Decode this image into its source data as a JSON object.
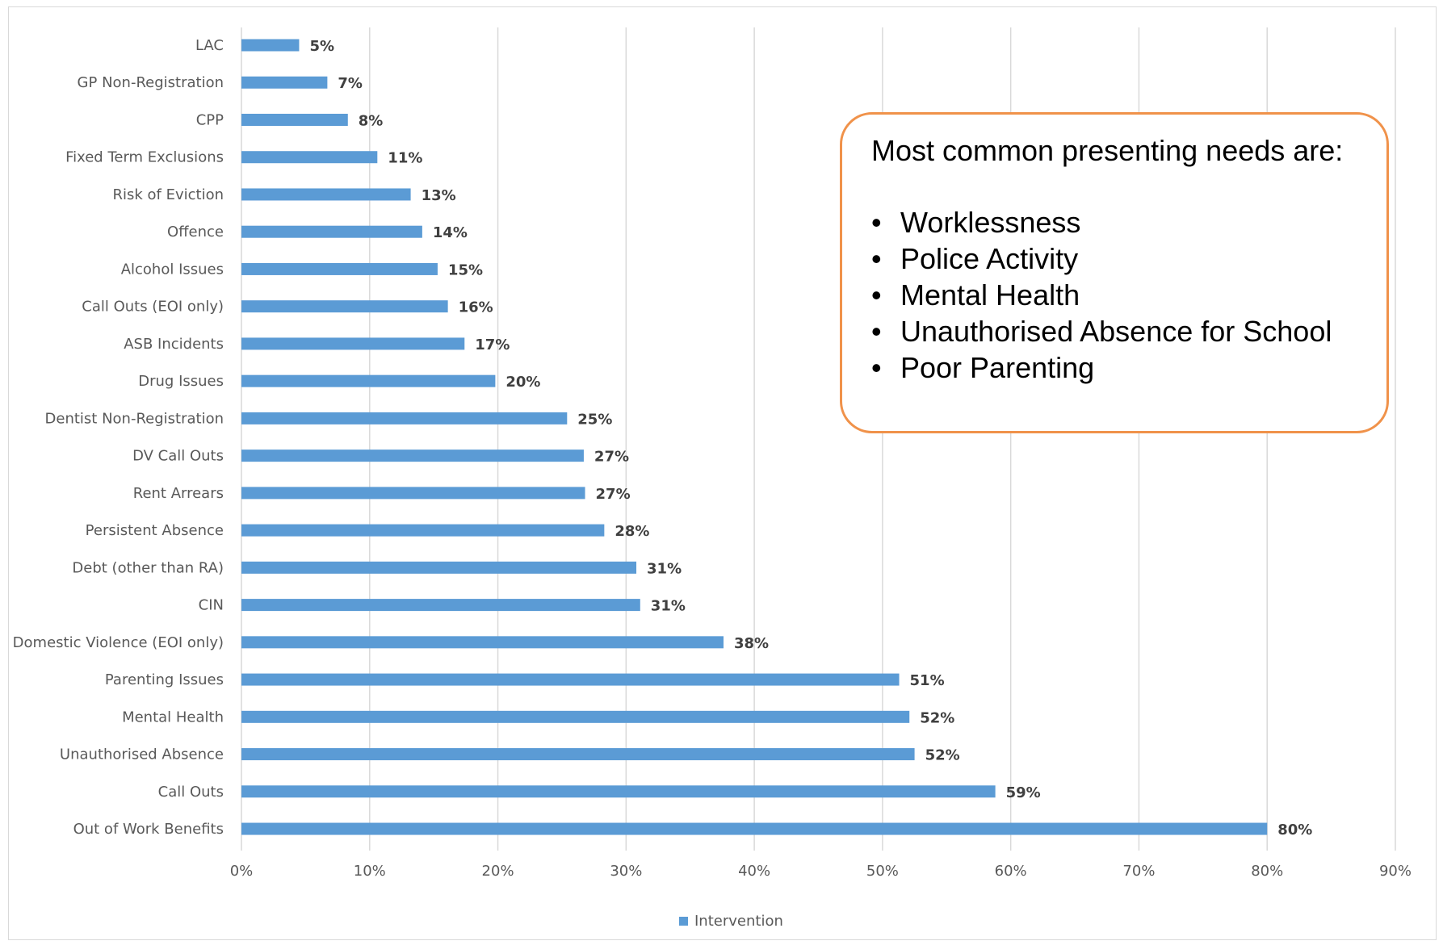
{
  "chart_data": {
    "type": "bar",
    "orientation": "horizontal",
    "categories": [
      "LAC",
      "GP Non-Registration",
      "CPP",
      "Fixed Term Exclusions",
      "Risk of Eviction",
      "Offence",
      "Alcohol Issues",
      "Call Outs (EOI only)",
      "ASB Incidents",
      "Drug Issues",
      "Dentist Non-Registration",
      "DV Call Outs",
      "Rent Arrears",
      "Persistent Absence",
      "Debt (other than RA)",
      "CIN",
      "Domestic Violence (EOI only)",
      "Parenting Issues",
      "Mental Health",
      "Unauthorised Absence",
      "Call Outs",
      "Out of Work Benefits"
    ],
    "series": [
      {
        "name": "Intervention",
        "color": "#5b9bd5",
        "values": [
          4.5,
          6.7,
          8.3,
          10.6,
          13.2,
          14.1,
          15.3,
          16.1,
          17.4,
          19.8,
          25.4,
          26.7,
          26.8,
          28.3,
          30.8,
          31.1,
          37.6,
          51.3,
          52.1,
          52.5,
          58.8,
          80.0
        ],
        "data_labels": [
          "5%",
          "7%",
          "8%",
          "11%",
          "13%",
          "14%",
          "15%",
          "16%",
          "17%",
          "20%",
          "25%",
          "27%",
          "27%",
          "28%",
          "31%",
          "31%",
          "38%",
          "51%",
          "52%",
          "52%",
          "59%",
          "80%"
        ]
      }
    ],
    "xlim": [
      0,
      90
    ],
    "x_ticks": [
      0,
      10,
      20,
      30,
      40,
      50,
      60,
      70,
      80,
      90
    ],
    "x_tick_labels": [
      "0%",
      "10%",
      "20%",
      "30%",
      "40%",
      "50%",
      "60%",
      "70%",
      "80%",
      "90%"
    ],
    "grid": "vertical",
    "legend": "bottom"
  },
  "callout": {
    "title": "Most common presenting needs are:",
    "bullet": "•",
    "items": [
      "Worklessness",
      "Police Activity",
      "Mental Health",
      "Unauthorised Absence for School",
      "Poor Parenting"
    ]
  },
  "colors": {
    "bar": "#5b9bd5",
    "gridline": "#d9d9d9",
    "callout_border": "#f0924a"
  }
}
